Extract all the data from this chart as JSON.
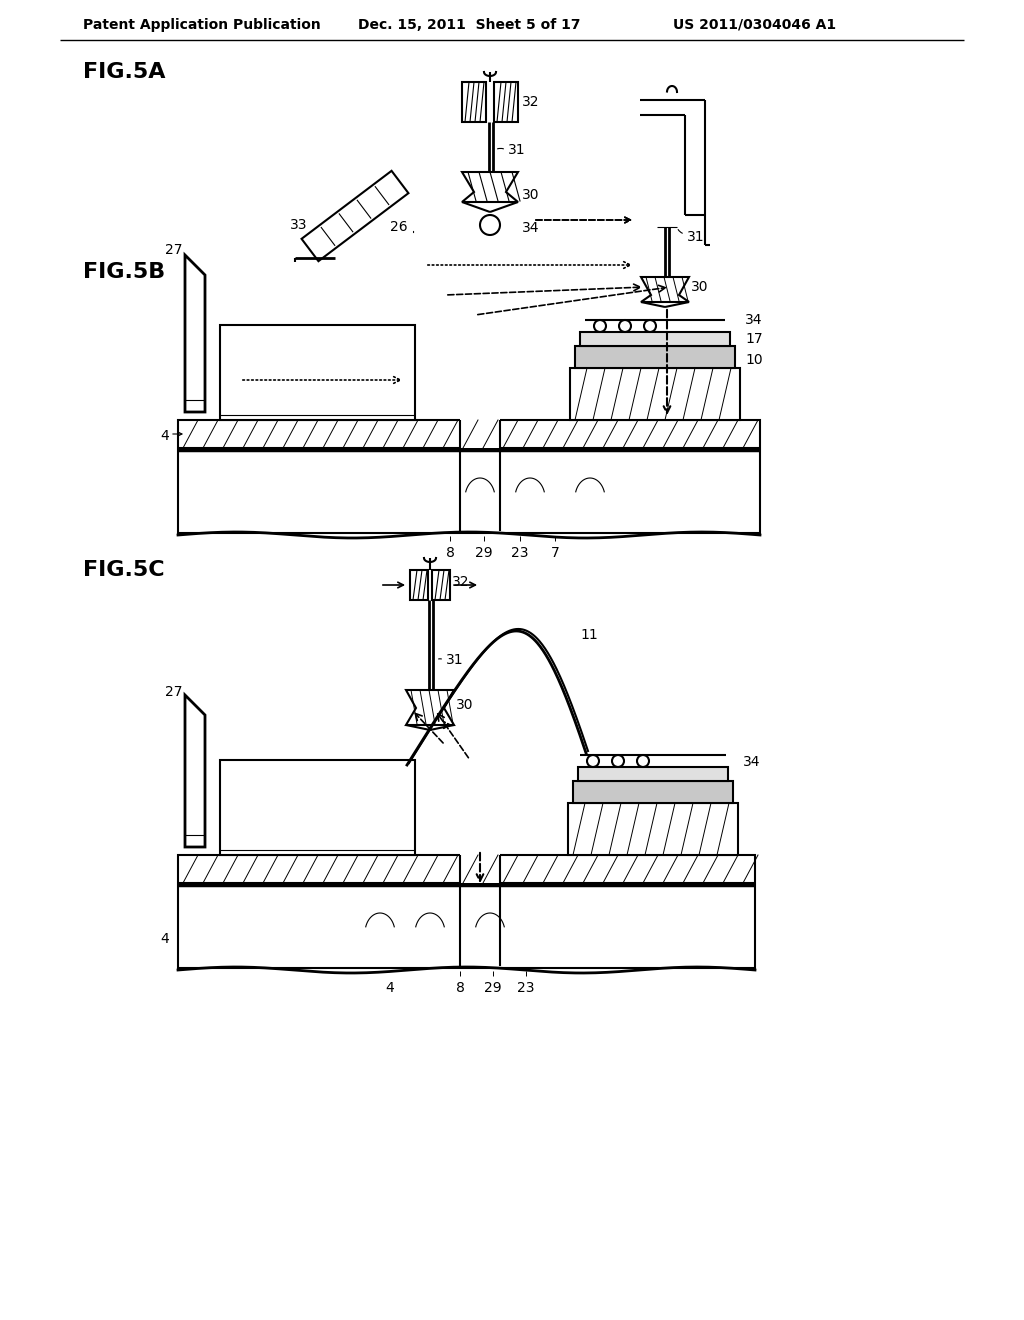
{
  "bg_color": "#ffffff",
  "header_left": "Patent Application Publication",
  "header_mid": "Dec. 15, 2011  Sheet 5 of 17",
  "header_right": "US 2011/0304046 A1",
  "fig5a_label": "FIG.5A",
  "fig5b_label": "FIG.5B",
  "fig5c_label": "FIG.5C",
  "lc": "#000000"
}
